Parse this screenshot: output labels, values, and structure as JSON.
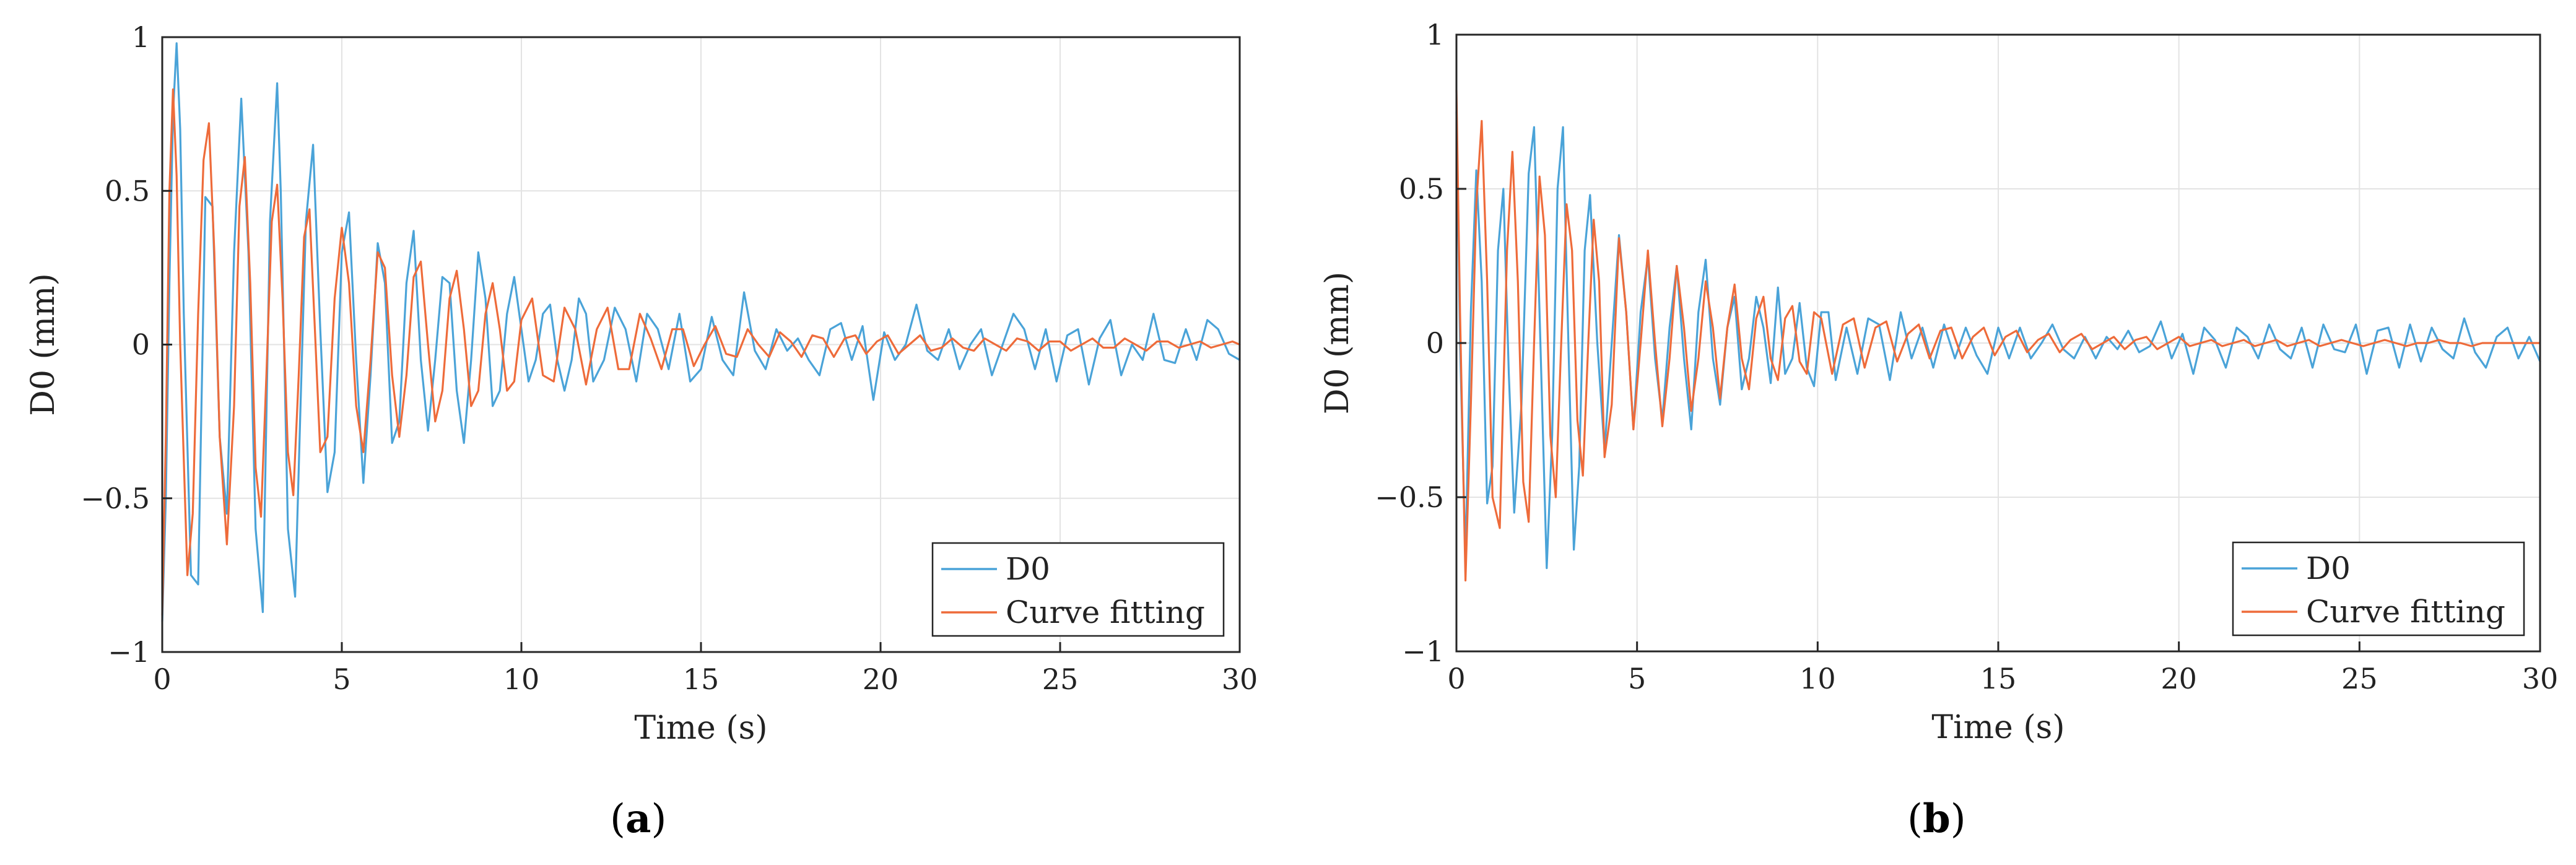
{
  "chart_data": [
    {
      "type": "line",
      "panel_label": "a",
      "xlabel": "Time (s)",
      "ylabel": "D0 (mm)",
      "xlim": [
        0,
        30
      ],
      "ylim": [
        -1,
        1
      ],
      "xticks": [
        0,
        5,
        10,
        15,
        20,
        25,
        30
      ],
      "xtick_labels": [
        "0",
        "5",
        "10",
        "15",
        "20",
        "25",
        "30"
      ],
      "yticks": [
        -1,
        -0.5,
        0,
        0.5,
        1
      ],
      "ytick_labels": [
        "−1",
        "−0.5",
        "0",
        "0.5",
        "1"
      ],
      "grid": true,
      "legend_position": "bottom-right",
      "series": [
        {
          "name": "D0",
          "color": "#4aa3d8",
          "x": [
            0,
            0.1,
            0.2,
            0.3,
            0.4,
            0.5,
            0.6,
            0.8,
            1,
            1.2,
            1.4,
            1.6,
            1.8,
            2,
            2.2,
            2.4,
            2.6,
            2.8,
            3,
            3.2,
            3.3,
            3.5,
            3.7,
            3.85,
            4,
            4.2,
            4.4,
            4.6,
            4.8,
            5,
            5.2,
            5.4,
            5.6,
            5.8,
            6,
            6.2,
            6.4,
            6.6,
            6.8,
            7,
            7.2,
            7.4,
            7.6,
            7.8,
            8,
            8.2,
            8.4,
            8.6,
            8.8,
            9,
            9.2,
            9.4,
            9.6,
            9.8,
            10,
            10.2,
            10.4,
            10.6,
            10.8,
            11,
            11.2,
            11.4,
            11.6,
            11.8,
            12,
            12.3,
            12.6,
            12.9,
            13.2,
            13.5,
            13.8,
            14.1,
            14.4,
            14.7,
            15,
            15.3,
            15.6,
            15.9,
            16.2,
            16.5,
            16.8,
            17.1,
            17.4,
            17.7,
            18,
            18.3,
            18.6,
            18.9,
            19.2,
            19.5,
            19.8,
            20.1,
            20.4,
            20.7,
            21,
            21.3,
            21.6,
            21.9,
            22.2,
            22.5,
            22.8,
            23.1,
            23.4,
            23.7,
            24,
            24.3,
            24.6,
            24.9,
            25.2,
            25.5,
            25.8,
            26.1,
            26.4,
            26.7,
            27,
            27.3,
            27.6,
            27.9,
            28.2,
            28.5,
            28.8,
            29.1,
            29.4,
            29.7,
            30
          ],
          "y": [
            -0.9,
            -0.5,
            0.2,
            0.75,
            0.98,
            0.7,
            0.1,
            -0.75,
            -0.78,
            0.48,
            0.45,
            -0.3,
            -0.55,
            0.3,
            0.8,
            0.3,
            -0.6,
            -0.87,
            0.4,
            0.85,
            0.5,
            -0.6,
            -0.82,
            -0.2,
            0.4,
            0.65,
            0.05,
            -0.48,
            -0.35,
            0.3,
            0.43,
            -0.05,
            -0.45,
            -0.1,
            0.33,
            0.2,
            -0.32,
            -0.25,
            0.2,
            0.37,
            -0.05,
            -0.28,
            -0.05,
            0.22,
            0.2,
            -0.15,
            -0.32,
            -0.05,
            0.3,
            0.15,
            -0.2,
            -0.15,
            0.1,
            0.22,
            0.05,
            -0.12,
            -0.05,
            0.1,
            0.13,
            -0.05,
            -0.15,
            -0.05,
            0.15,
            0.1,
            -0.12,
            -0.05,
            0.12,
            0.05,
            -0.12,
            0.1,
            0.05,
            -0.08,
            0.1,
            -0.12,
            -0.08,
            0.09,
            -0.05,
            -0.1,
            0.17,
            -0.02,
            -0.08,
            0.05,
            -0.02,
            0.02,
            -0.05,
            -0.1,
            0.05,
            0.07,
            -0.05,
            0.06,
            -0.18,
            0.04,
            -0.05,
            0.0,
            0.13,
            -0.02,
            -0.05,
            0.05,
            -0.08,
            0.0,
            0.05,
            -0.1,
            0.0,
            0.1,
            0.05,
            -0.08,
            0.05,
            -0.12,
            0.03,
            0.05,
            -0.13,
            0.02,
            0.08,
            -0.1,
            0.0,
            -0.05,
            0.1,
            -0.05,
            -0.06,
            0.05,
            -0.05,
            0.08,
            0.05,
            -0.03,
            -0.05
          ]
        },
        {
          "name": "Curve fitting",
          "color": "#ee6b3a",
          "x": [
            0,
            0.1,
            0.2,
            0.3,
            0.4,
            0.5,
            0.7,
            0.85,
            1,
            1.15,
            1.3,
            1.45,
            1.6,
            1.8,
            2,
            2.15,
            2.3,
            2.45,
            2.6,
            2.75,
            2.9,
            3.05,
            3.2,
            3.35,
            3.5,
            3.65,
            3.8,
            3.95,
            4.1,
            4.25,
            4.4,
            4.6,
            4.8,
            5,
            5.2,
            5.4,
            5.6,
            5.8,
            6,
            6.2,
            6.4,
            6.6,
            6.8,
            7,
            7.2,
            7.4,
            7.6,
            7.8,
            8,
            8.2,
            8.4,
            8.6,
            8.8,
            9,
            9.2,
            9.4,
            9.6,
            9.8,
            10,
            10.3,
            10.6,
            10.9,
            11.2,
            11.5,
            11.8,
            12.1,
            12.4,
            12.7,
            13,
            13.3,
            13.6,
            13.9,
            14.2,
            14.5,
            14.8,
            15.1,
            15.4,
            15.7,
            16,
            16.3,
            16.6,
            16.9,
            17.2,
            17.5,
            17.8,
            18.1,
            18.4,
            18.7,
            19,
            19.3,
            19.6,
            19.9,
            20.2,
            20.5,
            20.8,
            21.1,
            21.4,
            21.7,
            22,
            22.3,
            22.6,
            22.9,
            23.2,
            23.5,
            23.8,
            24.1,
            24.4,
            24.7,
            25,
            25.3,
            25.6,
            25.9,
            26.2,
            26.5,
            26.8,
            27.1,
            27.4,
            27.7,
            28,
            28.3,
            28.6,
            28.9,
            29.2,
            29.5,
            29.8,
            30
          ],
          "y": [
            -0.88,
            -0.3,
            0.5,
            0.83,
            0.55,
            0.0,
            -0.75,
            -0.55,
            0.1,
            0.6,
            0.72,
            0.3,
            -0.3,
            -0.65,
            -0.2,
            0.45,
            0.61,
            0.2,
            -0.4,
            -0.56,
            -0.1,
            0.4,
            0.52,
            0.15,
            -0.35,
            -0.49,
            -0.1,
            0.35,
            0.44,
            0.05,
            -0.35,
            -0.3,
            0.15,
            0.38,
            0.2,
            -0.2,
            -0.35,
            -0.05,
            0.3,
            0.25,
            -0.1,
            -0.3,
            -0.1,
            0.22,
            0.27,
            0.0,
            -0.25,
            -0.15,
            0.15,
            0.24,
            0.05,
            -0.2,
            -0.15,
            0.1,
            0.2,
            0.05,
            -0.15,
            -0.12,
            0.08,
            0.15,
            -0.1,
            -0.12,
            0.12,
            0.05,
            -0.13,
            0.05,
            0.12,
            -0.08,
            -0.08,
            0.1,
            0.02,
            -0.08,
            0.05,
            0.05,
            -0.07,
            0.0,
            0.06,
            -0.03,
            -0.04,
            0.05,
            0.0,
            -0.04,
            0.04,
            0.01,
            -0.04,
            0.03,
            0.02,
            -0.04,
            0.02,
            0.03,
            -0.03,
            0.01,
            0.03,
            -0.03,
            0.0,
            0.03,
            -0.02,
            -0.01,
            0.02,
            -0.01,
            -0.02,
            0.02,
            0.0,
            -0.02,
            0.02,
            0.01,
            -0.02,
            0.01,
            0.01,
            -0.02,
            0.0,
            0.02,
            -0.01,
            -0.01,
            0.02,
            0.0,
            -0.02,
            0.01,
            0.01,
            -0.01,
            0.0,
            0.01,
            -0.01,
            0.0,
            0.01,
            0.0
          ]
        }
      ]
    },
    {
      "type": "line",
      "panel_label": "b",
      "xlabel": "Time (s)",
      "ylabel": "D0 (mm)",
      "xlim": [
        0,
        30
      ],
      "ylim": [
        -1,
        1
      ],
      "xticks": [
        0,
        5,
        10,
        15,
        20,
        25,
        30
      ],
      "xtick_labels": [
        "0",
        "5",
        "10",
        "15",
        "20",
        "25",
        "30"
      ],
      "yticks": [
        -1,
        -0.5,
        0,
        0.5,
        1
      ],
      "ytick_labels": [
        "−1",
        "−0.5",
        "0",
        "0.5",
        "1"
      ],
      "grid": true,
      "legend_position": "bottom-right",
      "series": [
        {
          "name": "D0",
          "color": "#4aa3d8",
          "x": [
            0,
            0.1,
            0.25,
            0.4,
            0.55,
            0.7,
            0.85,
            1,
            1.15,
            1.3,
            1.45,
            1.6,
            1.8,
            2,
            2.15,
            2.3,
            2.5,
            2.65,
            2.8,
            2.95,
            3.1,
            3.25,
            3.4,
            3.55,
            3.7,
            3.9,
            4.1,
            4.3,
            4.5,
            4.7,
            4.9,
            5.1,
            5.3,
            5.5,
            5.7,
            5.9,
            6.1,
            6.3,
            6.5,
            6.7,
            6.9,
            7.1,
            7.3,
            7.5,
            7.7,
            7.9,
            8.1,
            8.3,
            8.5,
            8.7,
            8.9,
            9.1,
            9.3,
            9.5,
            9.7,
            9.9,
            10.1,
            10.3,
            10.5,
            10.8,
            11.1,
            11.4,
            11.7,
            12,
            12.3,
            12.6,
            12.9,
            13.2,
            13.5,
            13.8,
            14.1,
            14.4,
            14.7,
            15,
            15.3,
            15.6,
            15.9,
            16.2,
            16.5,
            16.8,
            17.1,
            17.4,
            17.7,
            18,
            18.3,
            18.6,
            18.9,
            19.2,
            19.5,
            19.8,
            20.1,
            20.4,
            20.7,
            21,
            21.3,
            21.6,
            21.9,
            22.2,
            22.5,
            22.8,
            23.1,
            23.4,
            23.7,
            24,
            24.3,
            24.6,
            24.9,
            25.2,
            25.5,
            25.8,
            26.1,
            26.4,
            26.7,
            27,
            27.3,
            27.6,
            27.9,
            28.2,
            28.5,
            28.8,
            29.1,
            29.4,
            29.7,
            30
          ],
          "y": [
            0.75,
            0.0,
            -0.7,
            0.1,
            0.56,
            0.2,
            -0.52,
            -0.4,
            0.3,
            0.5,
            -0.1,
            -0.55,
            -0.2,
            0.55,
            0.7,
            0.1,
            -0.73,
            -0.3,
            0.5,
            0.7,
            0.0,
            -0.67,
            -0.4,
            0.3,
            0.48,
            0.0,
            -0.35,
            0.0,
            0.35,
            0.1,
            -0.28,
            0.1,
            0.28,
            -0.05,
            -0.25,
            0.05,
            0.25,
            -0.05,
            -0.28,
            0.1,
            0.27,
            -0.05,
            -0.2,
            0.05,
            0.15,
            -0.15,
            -0.05,
            0.15,
            0.05,
            -0.13,
            0.18,
            -0.1,
            -0.05,
            0.13,
            -0.08,
            -0.14,
            0.1,
            0.1,
            -0.12,
            0.05,
            -0.1,
            0.08,
            0.06,
            -0.12,
            0.1,
            -0.05,
            0.05,
            -0.08,
            0.06,
            -0.05,
            0.05,
            -0.04,
            -0.1,
            0.05,
            -0.05,
            0.05,
            -0.05,
            0.0,
            0.06,
            -0.02,
            -0.05,
            0.02,
            -0.05,
            0.02,
            -0.02,
            0.04,
            -0.03,
            -0.01,
            0.07,
            -0.05,
            0.03,
            -0.1,
            0.05,
            0.01,
            -0.08,
            0.05,
            0.02,
            -0.05,
            0.06,
            -0.02,
            -0.05,
            0.05,
            -0.08,
            0.06,
            -0.02,
            -0.03,
            0.06,
            -0.1,
            0.04,
            0.05,
            -0.08,
            0.06,
            -0.06,
            0.05,
            -0.02,
            -0.05,
            0.08,
            -0.03,
            -0.08,
            0.02,
            0.05,
            -0.05,
            0.02,
            -0.06
          ]
        },
        {
          "name": "Curve fitting",
          "color": "#ee6b3a",
          "x": [
            0,
            0.1,
            0.25,
            0.4,
            0.55,
            0.7,
            0.85,
            1,
            1.2,
            1.4,
            1.55,
            1.7,
            1.85,
            2,
            2.15,
            2.3,
            2.45,
            2.6,
            2.75,
            2.9,
            3.05,
            3.2,
            3.35,
            3.5,
            3.65,
            3.8,
            3.95,
            4.1,
            4.3,
            4.5,
            4.7,
            4.9,
            5.1,
            5.3,
            5.5,
            5.7,
            5.9,
            6.1,
            6.3,
            6.5,
            6.7,
            6.9,
            7.1,
            7.3,
            7.5,
            7.7,
            7.9,
            8.1,
            8.3,
            8.5,
            8.7,
            8.9,
            9.1,
            9.3,
            9.5,
            9.7,
            9.9,
            10.1,
            10.4,
            10.7,
            11,
            11.3,
            11.6,
            11.9,
            12.2,
            12.5,
            12.8,
            13.1,
            13.4,
            13.7,
            14,
            14.3,
            14.6,
            14.9,
            15.2,
            15.5,
            15.8,
            16.1,
            16.4,
            16.7,
            17,
            17.3,
            17.6,
            17.9,
            18.2,
            18.5,
            18.8,
            19.1,
            19.4,
            19.7,
            20,
            20.3,
            20.6,
            20.9,
            21.2,
            21.5,
            21.8,
            22.1,
            22.4,
            22.7,
            23,
            23.3,
            23.6,
            23.9,
            24.2,
            24.5,
            24.8,
            25.1,
            25.4,
            25.7,
            26,
            26.3,
            26.6,
            26.9,
            27.2,
            27.5,
            27.8,
            28.1,
            28.4,
            28.7,
            29,
            29.3,
            29.6,
            30
          ],
          "y": [
            0.82,
            0.1,
            -0.77,
            -0.2,
            0.45,
            0.72,
            0.2,
            -0.5,
            -0.6,
            0.3,
            0.62,
            0.2,
            -0.45,
            -0.58,
            0.0,
            0.54,
            0.35,
            -0.3,
            -0.5,
            0.0,
            0.45,
            0.3,
            -0.25,
            -0.43,
            0.0,
            0.4,
            0.2,
            -0.37,
            -0.2,
            0.34,
            0.1,
            -0.28,
            0.0,
            0.3,
            0.0,
            -0.27,
            -0.05,
            0.25,
            0.05,
            -0.22,
            -0.05,
            0.2,
            0.05,
            -0.18,
            0.05,
            0.19,
            -0.05,
            -0.15,
            0.08,
            0.15,
            -0.05,
            -0.12,
            0.08,
            0.12,
            -0.06,
            -0.1,
            0.1,
            0.08,
            -0.1,
            0.06,
            0.08,
            -0.08,
            0.05,
            0.07,
            -0.06,
            0.03,
            0.06,
            -0.05,
            0.04,
            0.05,
            -0.05,
            0.02,
            0.05,
            -0.04,
            0.02,
            0.04,
            -0.03,
            0.01,
            0.03,
            -0.03,
            0.01,
            0.03,
            -0.02,
            0.0,
            0.02,
            -0.02,
            0.01,
            0.02,
            -0.02,
            0.0,
            0.02,
            -0.01,
            0.0,
            0.01,
            -0.01,
            0.0,
            0.01,
            -0.01,
            0.0,
            0.01,
            -0.01,
            0.0,
            0.01,
            -0.01,
            0.0,
            0.01,
            0.0,
            -0.01,
            0.0,
            0.01,
            0.0,
            -0.01,
            0.0,
            0.0,
            0.01,
            0.0,
            0.0,
            -0.01,
            0.0,
            0.0,
            0.0,
            0.0,
            0.0,
            0.0
          ]
        }
      ]
    }
  ]
}
